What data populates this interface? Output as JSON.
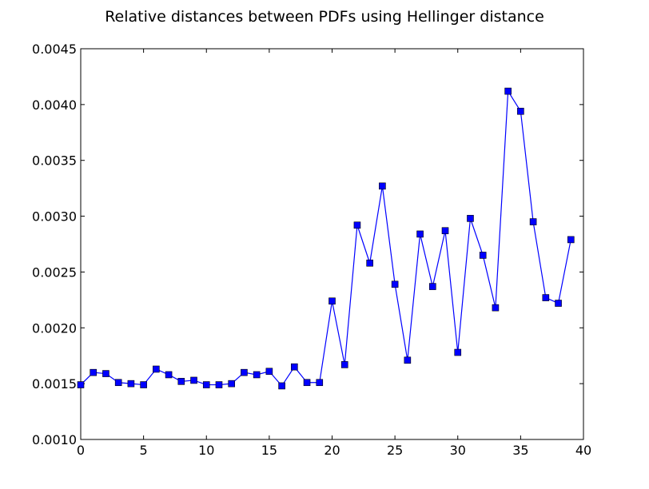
{
  "chart_data": {
    "type": "line",
    "title": "Relative distances between PDFs using Hellinger distance",
    "xlabel": "",
    "ylabel": "",
    "xlim": [
      0,
      40
    ],
    "ylim": [
      0.001,
      0.0045
    ],
    "xticks": [
      0,
      5,
      10,
      15,
      20,
      25,
      30,
      35,
      40
    ],
    "xtick_labels": [
      "0",
      "5",
      "10",
      "15",
      "20",
      "25",
      "30",
      "35",
      "40"
    ],
    "yticks": [
      0.001,
      0.0015,
      0.002,
      0.0025,
      0.003,
      0.0035,
      0.004,
      0.0045
    ],
    "ytick_labels": [
      "0.0010",
      "0.0015",
      "0.0020",
      "0.0025",
      "0.0030",
      "0.0035",
      "0.0040",
      "0.0045"
    ],
    "grid": false,
    "marker": "square",
    "line_color": "#0000ff",
    "marker_color": "#0000ff",
    "series": [
      {
        "x": [
          0,
          1,
          2,
          3,
          4,
          5,
          6,
          7,
          8,
          9,
          10,
          11,
          12,
          13,
          14,
          15,
          16,
          17,
          18,
          19,
          20,
          21,
          22,
          23,
          24,
          25,
          26,
          27,
          28,
          29,
          30,
          31,
          32,
          33,
          34,
          35,
          36,
          37,
          38,
          39
        ],
        "values": [
          0.00149,
          0.0016,
          0.00159,
          0.00151,
          0.0015,
          0.00149,
          0.00163,
          0.00158,
          0.00152,
          0.00153,
          0.00149,
          0.00149,
          0.0015,
          0.0016,
          0.00158,
          0.00161,
          0.00148,
          0.00165,
          0.00151,
          0.00151,
          0.00224,
          0.00167,
          0.00292,
          0.00258,
          0.00327,
          0.00239,
          0.00171,
          0.00284,
          0.00237,
          0.00287,
          0.00178,
          0.00298,
          0.00265,
          0.00218,
          0.00412,
          0.00394,
          0.00295,
          0.00227,
          0.00222,
          0.00279
        ]
      }
    ]
  }
}
